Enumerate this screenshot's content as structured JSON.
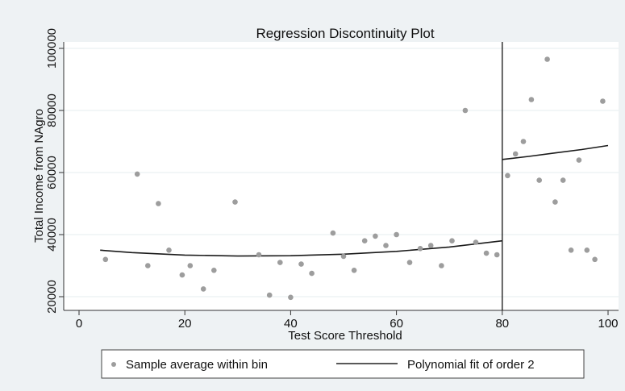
{
  "chart_data": {
    "type": "scatter",
    "title": "Regression Discontinuity Plot",
    "xlabel": "Test Score Threshold",
    "ylabel": "Total Income from NAgro",
    "xlim": [
      0,
      100
    ],
    "ylim": [
      20000,
      100000
    ],
    "xticks": [
      0,
      20,
      40,
      60,
      80,
      100
    ],
    "yticks": [
      20000,
      40000,
      60000,
      80000,
      100000
    ],
    "grid": "horizontal",
    "threshold": 80,
    "legend": {
      "placement": "bottom",
      "items": [
        "Sample average within bin",
        "Polynomial fit of order 2"
      ]
    },
    "series": [
      {
        "name": "Sample average within bin",
        "kind": "scatter",
        "points": [
          [
            5,
            32000
          ],
          [
            11,
            59500
          ],
          [
            13,
            30000
          ],
          [
            15,
            50000
          ],
          [
            17,
            35000
          ],
          [
            19.5,
            27000
          ],
          [
            21,
            30000
          ],
          [
            23.5,
            22500
          ],
          [
            25.5,
            28500
          ],
          [
            29.5,
            50500
          ],
          [
            34,
            33500
          ],
          [
            36,
            20500
          ],
          [
            38,
            31000
          ],
          [
            40,
            19800
          ],
          [
            42,
            30500
          ],
          [
            44,
            27500
          ],
          [
            48,
            40500
          ],
          [
            50,
            33000
          ],
          [
            52,
            28500
          ],
          [
            54,
            38000
          ],
          [
            56,
            39500
          ],
          [
            58,
            36500
          ],
          [
            60,
            40000
          ],
          [
            62.5,
            31000
          ],
          [
            64.5,
            35500
          ],
          [
            66.5,
            36500
          ],
          [
            68.5,
            30000
          ],
          [
            70.5,
            38000
          ],
          [
            73,
            80000
          ],
          [
            75,
            37500
          ],
          [
            77,
            34000
          ],
          [
            79,
            33500
          ],
          [
            81,
            59000
          ],
          [
            82.5,
            66000
          ],
          [
            84,
            70000
          ],
          [
            85.5,
            83500
          ],
          [
            87,
            57500
          ],
          [
            88.5,
            96500
          ],
          [
            90,
            50500
          ],
          [
            91.5,
            57500
          ],
          [
            93,
            35000
          ],
          [
            94.5,
            64000
          ],
          [
            96,
            35000
          ],
          [
            97.5,
            32000
          ],
          [
            99,
            83000
          ]
        ]
      },
      {
        "name": "Polynomial fit of order 2",
        "kind": "line",
        "segments": [
          [
            [
              4,
              35000
            ],
            [
              10,
              34200
            ],
            [
              20,
              33400
            ],
            [
              30,
              33100
            ],
            [
              40,
              33200
            ],
            [
              50,
              33700
            ],
            [
              60,
              34600
            ],
            [
              70,
              36000
            ],
            [
              80,
              38000
            ]
          ],
          [
            [
              80,
              64200
            ],
            [
              85,
              65200
            ],
            [
              90,
              66300
            ],
            [
              95,
              67400
            ],
            [
              100,
              68700
            ]
          ]
        ]
      }
    ]
  }
}
